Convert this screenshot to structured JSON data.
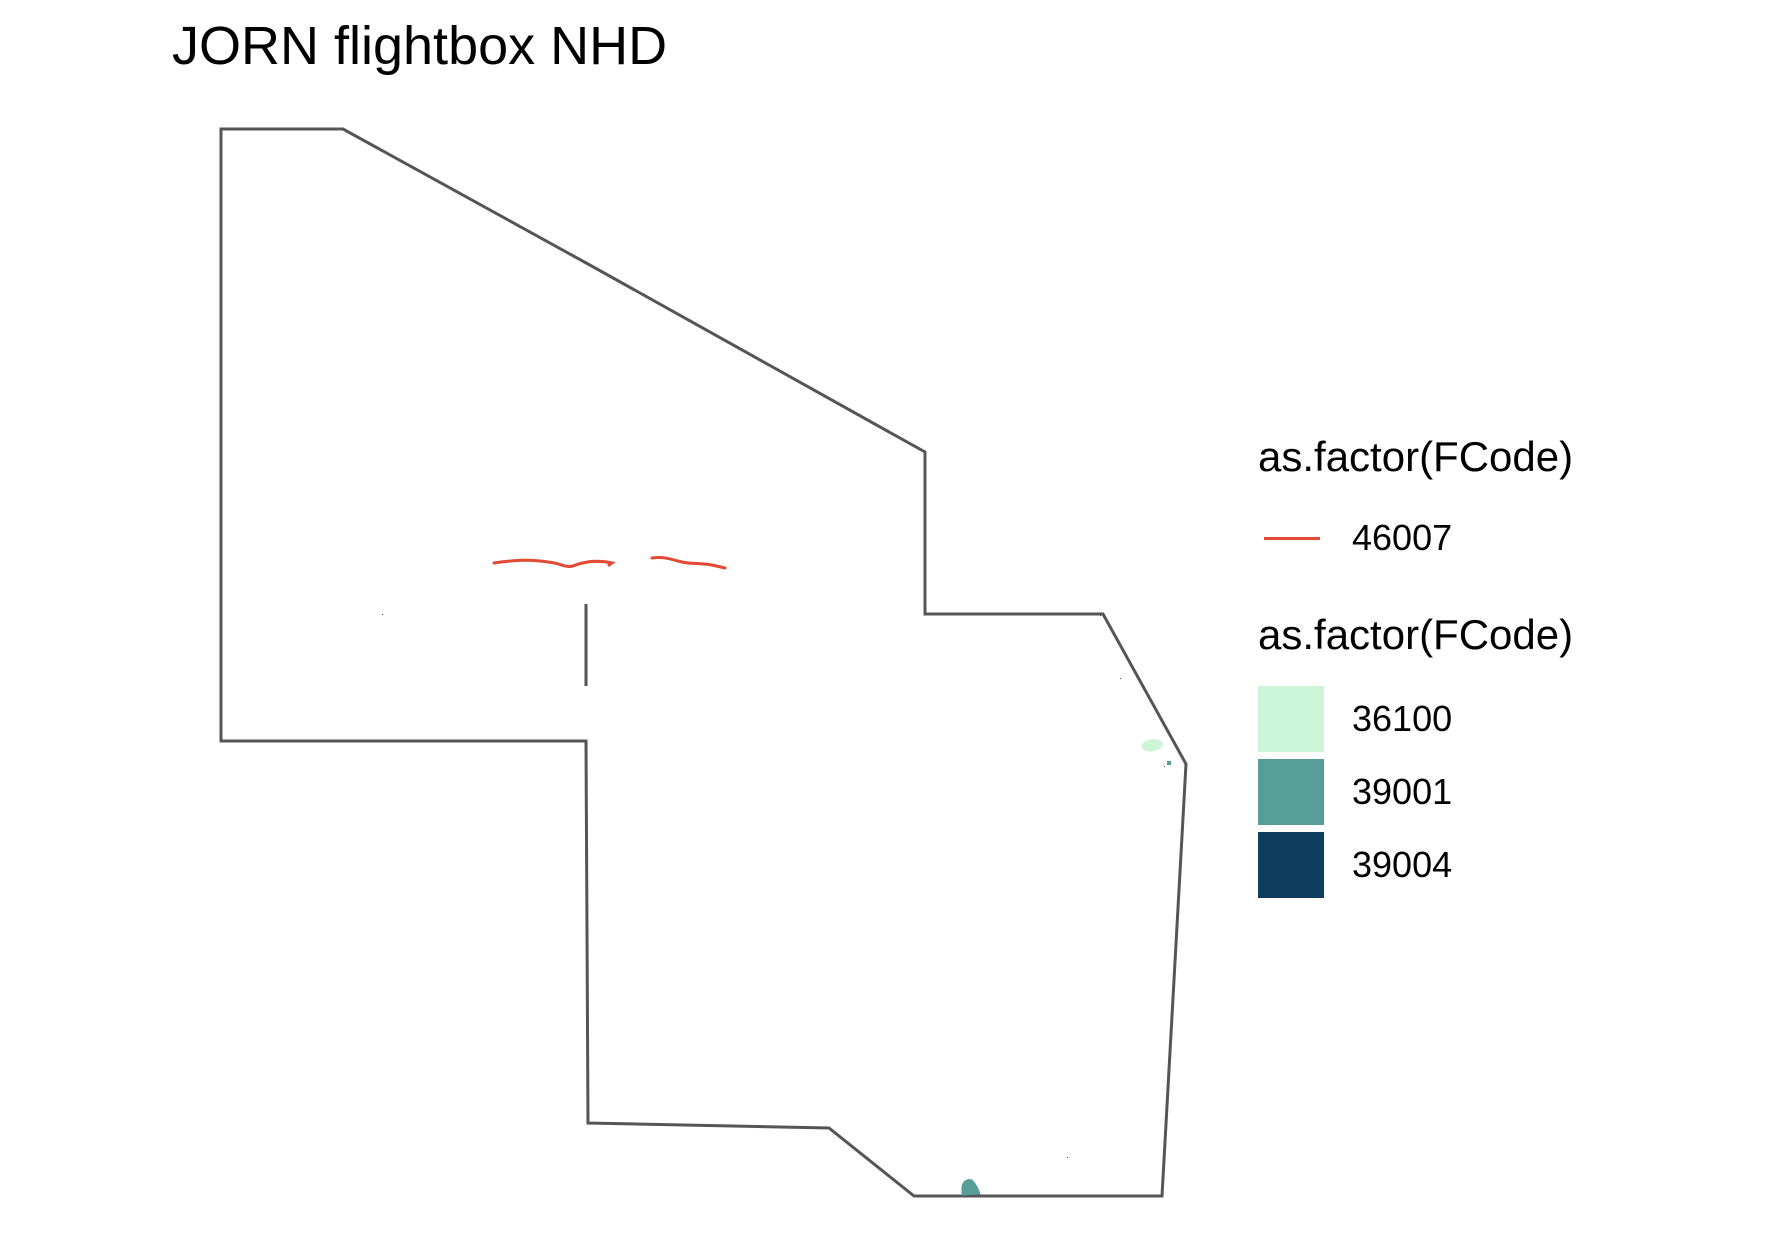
{
  "map": {
    "title": "JORN flightbox NHD",
    "boundary_color": "#555555"
  },
  "legend": {
    "lines": {
      "title": "as.factor(FCode)",
      "items": [
        {
          "label": "46007",
          "color": "#E34A33"
        }
      ]
    },
    "fills": {
      "title": "as.factor(FCode)",
      "items": [
        {
          "label": "36100",
          "color": "#CCF5D7"
        },
        {
          "label": "39001",
          "color": "#589E98"
        },
        {
          "label": "39004",
          "color": "#0E3D5E"
        }
      ]
    }
  }
}
